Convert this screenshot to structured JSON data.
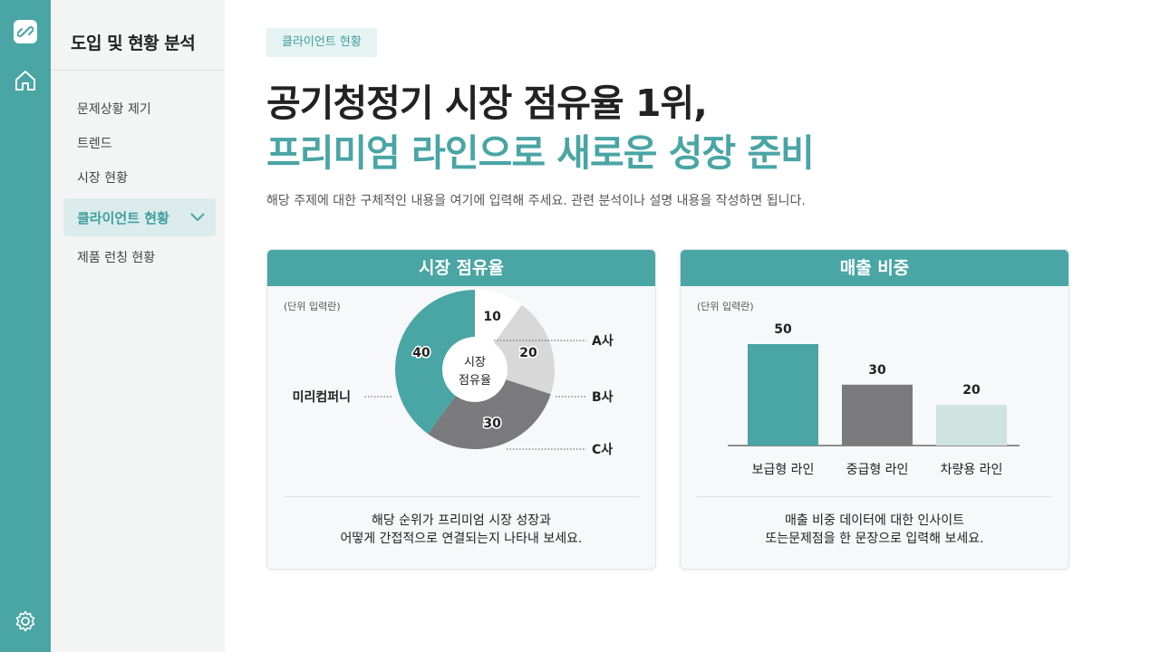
{
  "sidebar": {
    "title": "도입 및 현황 분석",
    "items": [
      {
        "label": "문제상황 제기"
      },
      {
        "label": "트렌드"
      },
      {
        "label": "시장 현황"
      },
      {
        "label": "클라이언트 현황",
        "active": true
      },
      {
        "label": "제품 런칭 현황"
      }
    ]
  },
  "main": {
    "tag": "클라이언트 현황",
    "title_line1": "공기청정기 시장 점유율 1위,",
    "title_line2": "프리미엄 라인으로 새로운 성장 준비",
    "description": "해당 주제에 대한 구체적인 내용을 여기에 입력해 주세요. 관련 분석이나 설명 내용을 작성하면 됩니다."
  },
  "colors": {
    "accent": "#4aa5a5",
    "accent_light": "#dcecec",
    "gray": "#7a797b",
    "light_gray": "#d8d8d8",
    "mint_light": "#cfe3e0"
  },
  "cards": {
    "left": {
      "title": "시장 점유율",
      "unit": "(단위 입력란)",
      "center_label_1": "시장",
      "center_label_2": "점유율",
      "note_line1": "해당 순위가 프리미엄 시장 성장과",
      "note_line2": "어떻게 간접적으로 연결되는지 나타내 보세요."
    },
    "right": {
      "title": "매출 비중",
      "unit": "(단위 입력란)",
      "note_line1": "매출 비중 데이터에 대한 인사이트",
      "note_line2": "또는문제점을 한 문장으로 입력해 보세요."
    }
  },
  "chart_data": [
    {
      "type": "pie",
      "title": "시장 점유율",
      "labels": [
        "A사",
        "B사",
        "C사",
        "미리컴퍼니"
      ],
      "values": [
        10,
        20,
        30,
        40
      ],
      "colors": [
        "#ffffff",
        "#d8d8d8",
        "#7a797b",
        "#4aa5a5"
      ]
    },
    {
      "type": "bar",
      "title": "매출 비중",
      "categories": [
        "보급형 라인",
        "중급형 라인",
        "차량용 라인"
      ],
      "values": [
        50,
        30,
        20
      ],
      "colors": [
        "#4aa5a5",
        "#7a797b",
        "#cfe3e0"
      ]
    }
  ]
}
